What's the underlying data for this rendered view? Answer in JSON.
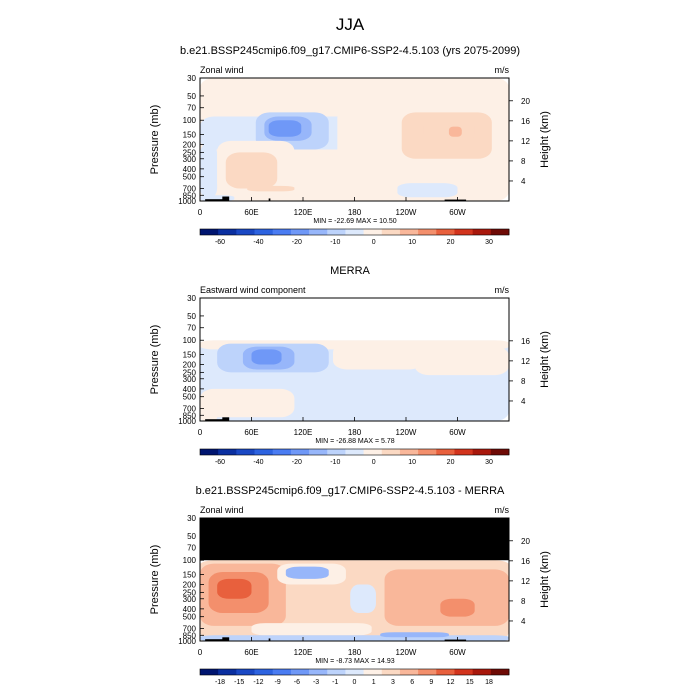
{
  "figure": {
    "title": "JJA"
  },
  "colors": {
    "background": "#ffffff",
    "black": "#000000",
    "no_data": "#000000",
    "frame": "#000000"
  },
  "chart_data": [
    {
      "type": "heatmap",
      "title": "b.e21.BSSP245cmip6.f09_g17.CMIP6-SSP2-4.5.103 (yrs 2075-2099)",
      "field_label": "Zonal wind",
      "units": "m/s",
      "ylabel": "Pressure (mb)",
      "ylabel_right": "Height (km)",
      "xlabel": "",
      "x_ticks": [
        "0",
        "60E",
        "120E",
        "180",
        "120W",
        "60W"
      ],
      "y_ticks": [
        "30",
        "50",
        "70",
        "100",
        "150",
        "200",
        "250",
        "300",
        "400",
        "500",
        "700",
        "850",
        "1000"
      ],
      "y_right_ticks": [
        "20",
        "16",
        "12",
        "8",
        "4"
      ],
      "stats": "MIN = -22.69  MAX = 10.50",
      "colorbar": {
        "tick_labels": [
          "-60",
          "-40",
          "-20",
          "-10",
          "0",
          "10",
          "20",
          "30"
        ],
        "colors": [
          "#001570",
          "#0a2fa0",
          "#1a48c4",
          "#2d63e0",
          "#4a7cf2",
          "#6f98f7",
          "#97b6fa",
          "#bdd3fb",
          "#dde9fc",
          "#fdf0e6",
          "#fbd9c3",
          "#f9b79a",
          "#f38f6c",
          "#e8603d",
          "#d2341d",
          "#a8180c",
          "#6e0a05"
        ]
      },
      "regions": [
        {
          "lon": [
            0,
            360
          ],
          "lev": [
            30,
            1000
          ],
          "value": 2
        },
        {
          "lon": [
            0,
            360
          ],
          "lev": [
            90,
            230
          ],
          "value": -2
        },
        {
          "lon": [
            65,
            150
          ],
          "lev": [
            80,
            230
          ],
          "value": -6
        },
        {
          "lon": [
            75,
            130
          ],
          "lev": [
            90,
            180
          ],
          "value": -12
        },
        {
          "lon": [
            80,
            118
          ],
          "lev": [
            100,
            160
          ],
          "value": -18
        },
        {
          "lon": [
            0,
            20
          ],
          "lev": [
            200,
            900
          ],
          "value": -2
        },
        {
          "lon": [
            20,
            110
          ],
          "lev": [
            180,
            800
          ],
          "value": 4
        },
        {
          "lon": [
            30,
            90
          ],
          "lev": [
            250,
            700
          ],
          "value": 6
        },
        {
          "lon": [
            55,
            110
          ],
          "lev": [
            650,
            760
          ],
          "value": 8
        },
        {
          "lon": [
            160,
            360
          ],
          "lev": [
            70,
            600
          ],
          "value": 4
        },
        {
          "lon": [
            235,
            340
          ],
          "lev": [
            80,
            300
          ],
          "value": 6
        },
        {
          "lon": [
            260,
            320
          ],
          "lev": [
            90,
            190
          ],
          "value": 9
        },
        {
          "lon": [
            290,
            305
          ],
          "lev": [
            120,
            160
          ],
          "value": 11
        },
        {
          "lon": [
            230,
            300
          ],
          "lev": [
            600,
            900
          ],
          "value": -2
        },
        {
          "lon": [
            0,
            40
          ],
          "lev": [
            850,
            1000
          ],
          "value": -4
        }
      ],
      "terrain": [
        {
          "lon": [
            6,
            30
          ],
          "lev": [
            950,
            1000
          ]
        },
        {
          "lon": [
            26,
            34
          ],
          "lev": [
            880,
            1000
          ]
        },
        {
          "lon": [
            80,
            82
          ],
          "lev": [
            930,
            1000
          ]
        },
        {
          "lon": [
            285,
            310
          ],
          "lev": [
            960,
            1000
          ]
        }
      ],
      "masked": []
    },
    {
      "type": "heatmap",
      "title": "MERRA",
      "field_label": "Eastward wind component",
      "units": "m/s",
      "ylabel": "Pressure (mb)",
      "ylabel_right": "Height (km)",
      "xlabel": "",
      "x_ticks": [
        "0",
        "60E",
        "120E",
        "180",
        "120W",
        "60W"
      ],
      "y_ticks": [
        "30",
        "50",
        "70",
        "100",
        "150",
        "200",
        "250",
        "300",
        "400",
        "500",
        "700",
        "850",
        "1000"
      ],
      "y_right_ticks": [
        "16",
        "12",
        "8",
        "4"
      ],
      "stats": "MIN = -26.88  MAX =   5.78",
      "colorbar": {
        "tick_labels": [
          "-60",
          "-40",
          "-20",
          "-10",
          "0",
          "10",
          "20",
          "30"
        ],
        "colors": [
          "#001570",
          "#0a2fa0",
          "#1a48c4",
          "#2d63e0",
          "#4a7cf2",
          "#6f98f7",
          "#97b6fa",
          "#bdd3fb",
          "#dde9fc",
          "#fdf0e6",
          "#fbd9c3",
          "#f9b79a",
          "#f38f6c",
          "#e8603d",
          "#d2341d",
          "#a8180c",
          "#6e0a05"
        ]
      },
      "regions": [
        {
          "lon": [
            0,
            360
          ],
          "lev": [
            100,
            1000
          ],
          "value": -2
        },
        {
          "lon": [
            0,
            360
          ],
          "lev": [
            100,
            130
          ],
          "value": 2
        },
        {
          "lon": [
            20,
            150
          ],
          "lev": [
            110,
            250
          ],
          "value": -6
        },
        {
          "lon": [
            50,
            110
          ],
          "lev": [
            120,
            230
          ],
          "value": -12
        },
        {
          "lon": [
            60,
            95
          ],
          "lev": [
            130,
            200
          ],
          "value": -18
        },
        {
          "lon": [
            155,
            260
          ],
          "lev": [
            110,
            230
          ],
          "value": 2
        },
        {
          "lon": [
            170,
            230
          ],
          "lev": [
            130,
            200
          ],
          "value": 4
        },
        {
          "lon": [
            250,
            360
          ],
          "lev": [
            120,
            270
          ],
          "value": 2
        },
        {
          "lon": [
            0,
            110
          ],
          "lev": [
            400,
            900
          ],
          "value": 2
        },
        {
          "lon": [
            20,
            70
          ],
          "lev": [
            500,
            750
          ],
          "value": 4
        },
        {
          "lon": [
            0,
            20
          ],
          "lev": [
            700,
            1000
          ],
          "value": 4
        }
      ],
      "terrain": [
        {
          "lon": [
            6,
            30
          ],
          "lev": [
            950,
            1000
          ]
        },
        {
          "lon": [
            26,
            34
          ],
          "lev": [
            900,
            1000
          ]
        }
      ],
      "masked": [
        {
          "lon": [
            0,
            360
          ],
          "lev": [
            30,
            100
          ],
          "color": "#ffffff"
        }
      ]
    },
    {
      "type": "heatmap",
      "title": "b.e21.BSSP245cmip6.f09_g17.CMIP6-SSP2-4.5.103 - MERRA",
      "field_label": "Zonal wind",
      "units": "m/s",
      "ylabel": "Pressure (mb)",
      "ylabel_right": "Height (km)",
      "xlabel": "",
      "x_ticks": [
        "0",
        "60E",
        "120E",
        "180",
        "120W",
        "60W"
      ],
      "y_ticks": [
        "30",
        "50",
        "70",
        "100",
        "150",
        "200",
        "250",
        "300",
        "400",
        "500",
        "700",
        "850",
        "1000"
      ],
      "y_right_ticks": [
        "20",
        "16",
        "12",
        "8",
        "4"
      ],
      "stats": "MIN =  -8.73  MAX =  14.93",
      "colorbar": {
        "tick_labels": [
          "-18",
          "-15",
          "-12",
          "-9",
          "-6",
          "-3",
          "-1",
          "0",
          "1",
          "3",
          "6",
          "9",
          "12",
          "15",
          "18"
        ],
        "colors": [
          "#001570",
          "#0a2fa0",
          "#1a48c4",
          "#2d63e0",
          "#4a7cf2",
          "#6f98f7",
          "#97b6fa",
          "#bdd3fb",
          "#dde9fc",
          "#fdf0e6",
          "#fbd9c3",
          "#f9b79a",
          "#f38f6c",
          "#e8603d",
          "#d2341d",
          "#a8180c",
          "#6e0a05"
        ]
      },
      "regions": [
        {
          "lon": [
            0,
            360
          ],
          "lev": [
            100,
            1000
          ],
          "value": 3.5
        },
        {
          "lon": [
            0,
            360
          ],
          "lev": [
            100,
            150
          ],
          "value": 4.5
        },
        {
          "lon": [
            0,
            100
          ],
          "lev": [
            110,
            650
          ],
          "value": 7
        },
        {
          "lon": [
            10,
            80
          ],
          "lev": [
            140,
            450
          ],
          "value": 10
        },
        {
          "lon": [
            20,
            60
          ],
          "lev": [
            170,
            300
          ],
          "value": 13
        },
        {
          "lon": [
            90,
            170
          ],
          "lev": [
            110,
            200
          ],
          "value": 1.5
        },
        {
          "lon": [
            100,
            150
          ],
          "lev": [
            120,
            170
          ],
          "value": -1.5
        },
        {
          "lon": [
            175,
            205
          ],
          "lev": [
            200,
            450
          ],
          "value": 0.5
        },
        {
          "lon": [
            215,
            360
          ],
          "lev": [
            130,
            650
          ],
          "value": 7
        },
        {
          "lon": [
            280,
            320
          ],
          "lev": [
            300,
            500
          ],
          "value": 10
        },
        {
          "lon": [
            60,
            200
          ],
          "lev": [
            600,
            850
          ],
          "value": 2
        },
        {
          "lon": [
            0,
            360
          ],
          "lev": [
            850,
            1000
          ],
          "value": -0.5
        },
        {
          "lon": [
            210,
            290
          ],
          "lev": [
            780,
            900
          ],
          "value": -2
        }
      ],
      "terrain": [
        {
          "lon": [
            6,
            30
          ],
          "lev": [
            950,
            1000
          ]
        },
        {
          "lon": [
            26,
            34
          ],
          "lev": [
            900,
            1000
          ]
        },
        {
          "lon": [
            80,
            82
          ],
          "lev": [
            930,
            1000
          ]
        },
        {
          "lon": [
            285,
            310
          ],
          "lev": [
            960,
            1000
          ]
        }
      ],
      "masked": [
        {
          "lon": [
            0,
            360
          ],
          "lev": [
            30,
            100
          ],
          "color": "#000000"
        }
      ]
    }
  ]
}
